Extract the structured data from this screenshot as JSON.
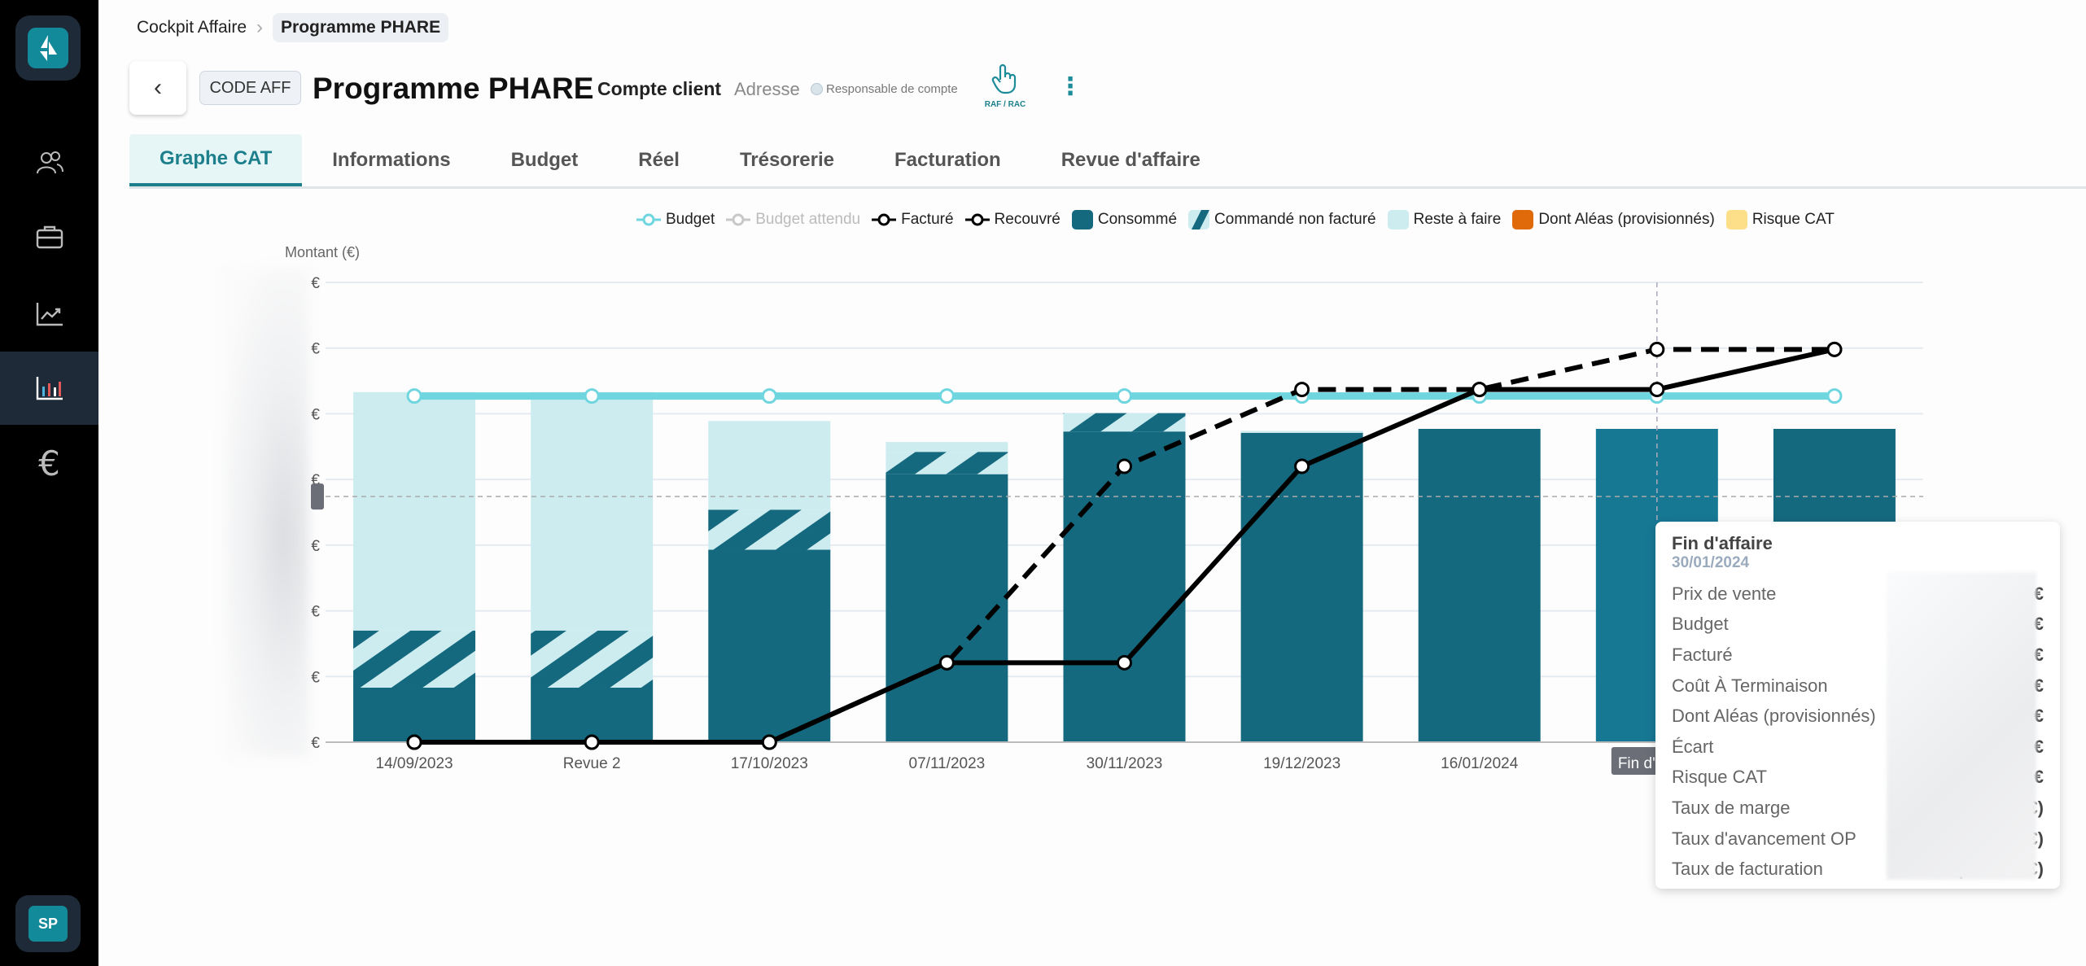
{
  "sidebar": {
    "items": [
      {
        "icon": "users-icon"
      },
      {
        "icon": "briefcase-icon"
      },
      {
        "icon": "trend-chart-icon"
      },
      {
        "icon": "bar-chart-icon",
        "active": true
      },
      {
        "icon": "euro-icon"
      }
    ],
    "avatar": "SP"
  },
  "breadcrumb": {
    "parent": "Cockpit Affaire",
    "current": "Programme PHARE"
  },
  "header": {
    "code": "CODE AFF",
    "title": "Programme PHARE",
    "client": "Compte client",
    "address": "Adresse",
    "manager": "Responsable de compte",
    "raf_label": "RAF / RAC"
  },
  "tabs": [
    {
      "label": "Graphe CAT",
      "active": true
    },
    {
      "label": "Informations"
    },
    {
      "label": "Budget"
    },
    {
      "label": "Réel"
    },
    {
      "label": "Trésorerie"
    },
    {
      "label": "Facturation"
    },
    {
      "label": "Revue d'affaire"
    }
  ],
  "legend": [
    {
      "label": "Budget",
      "kind": "line",
      "color": "#6fd6e0"
    },
    {
      "label": "Budget attendu",
      "kind": "line",
      "color": "#c8c8c8",
      "muted": true
    },
    {
      "label": "Facturé",
      "kind": "line",
      "color": "#000000"
    },
    {
      "label": "Recouvré",
      "kind": "line",
      "color": "#000000"
    },
    {
      "label": "Consommé",
      "kind": "box",
      "color": "#15697f"
    },
    {
      "label": "Commandé non facturé",
      "kind": "hatch",
      "color": "#15697f"
    },
    {
      "label": "Reste à faire",
      "kind": "box",
      "color": "#cdecf0"
    },
    {
      "label": "Dont Aléas (provisionnés)",
      "kind": "box",
      "color": "#e06a0a"
    },
    {
      "label": "Risque CAT",
      "kind": "box",
      "color": "#fddf8a"
    }
  ],
  "chart_data": {
    "type": "bar",
    "ylabel": "Montant (€)",
    "ylim": [
      0,
      7
    ],
    "yticks": [
      "€",
      "€",
      "€",
      "€",
      "€",
      "€",
      "€",
      "€"
    ],
    "grid": true,
    "legend_position": "top",
    "categories": [
      "14/09/2023",
      "Revue 2",
      "17/10/2023",
      "07/11/2023",
      "30/11/2023",
      "19/12/2023",
      "16/01/2024",
      "Fin d'affaire",
      ""
    ],
    "hover_index": 7,
    "stacked_series": [
      {
        "name": "Consommé",
        "values": [
          0.83,
          0.83,
          2.93,
          4.08,
          4.73,
          4.71,
          4.77,
          4.77,
          4.77
        ]
      },
      {
        "name": "Commandé non facturé",
        "values": [
          0.87,
          0.87,
          0.61,
          0.34,
          0.28,
          0,
          0,
          0,
          0
        ]
      },
      {
        "name": "Reste à faire",
        "values": [
          3.63,
          3.63,
          1.35,
          0.15,
          0,
          0.03,
          0,
          0,
          0
        ]
      }
    ],
    "line_series": [
      {
        "name": "Budget",
        "values": [
          5.27,
          5.27,
          5.27,
          5.27,
          5.27,
          5.27,
          5.27,
          5.27,
          5.27
        ]
      },
      {
        "name": "Facturé",
        "dashed": true,
        "values": [
          0,
          0,
          0,
          1.21,
          4.2,
          5.37,
          5.37,
          5.98,
          5.98
        ]
      },
      {
        "name": "Recouvré",
        "values": [
          0,
          0,
          0,
          1.21,
          1.21,
          4.2,
          5.37,
          5.37,
          5.98
        ]
      }
    ],
    "crosshair_y": 3.74
  },
  "tooltip": {
    "title": "Fin d'affaire",
    "date": "30/01/2024",
    "rows": [
      {
        "label": "Prix de vente",
        "prefix": "",
        "suffix": "€"
      },
      {
        "label": "Budget",
        "prefix": "",
        "suffix": "€"
      },
      {
        "label": "Facturé",
        "prefix": "",
        "suffix": "€"
      },
      {
        "label": "Coût À Terminaison",
        "prefix": "",
        "suffix": "€"
      },
      {
        "label": "Dont Aléas (provisionnés)",
        "prefix": "",
        "suffix": "€"
      },
      {
        "label": "Écart",
        "prefix": "",
        "suffix": "€"
      },
      {
        "label": "Risque CAT",
        "prefix": "",
        "suffix": "€"
      },
      {
        "label": "Taux de marge",
        "prefix": "",
        "suffix": "€)"
      },
      {
        "label": "Taux d'avancement OP",
        "prefix": "100 % (",
        "suffix": "€)"
      },
      {
        "label": "Taux de facturation",
        "prefix": "100 % (",
        "suffix": "€)"
      }
    ]
  }
}
